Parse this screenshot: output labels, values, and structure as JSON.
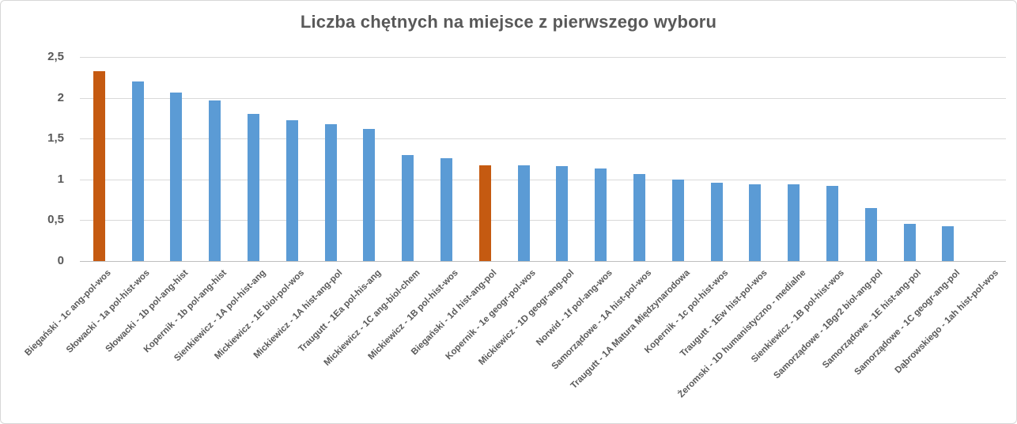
{
  "chart_data": {
    "type": "bar",
    "title": "Liczba chętnych na miejsce z pierwszego wyboru",
    "xlabel": "",
    "ylabel": "",
    "ylim": [
      0,
      2.5
    ],
    "grid": true,
    "legend": "none",
    "y_ticks": {
      "values": [
        2.5,
        2,
        1.5,
        1,
        0.5,
        0
      ],
      "labels": [
        "2,5",
        "2",
        "1,5",
        "1",
        "0,5",
        "0"
      ]
    },
    "categories": [
      "Biegański - 1c ang-pol-wos",
      "Słowacki - 1a pol-hist-wos",
      "Słowacki - 1b pol-ang-hist",
      "Kopernik - 1b pol-ang-hist",
      "Sienkiewicz - 1A pol-hist-ang",
      "Mickiewicz - 1E biol-pol-wos",
      "Mickiewicz - 1A hist-ang-pol",
      "Traugutt - 1Ea pol-his-ang",
      "Mickiewicz - 1C ang-biol-chem",
      "Mickiewicz - 1B pol-hist-wos",
      "Biegański - 1d hist-ang-pol",
      "Kopernik - 1e geogr-pol-wos",
      "Mickiewicz - 1D geogr-ang-pol",
      "Norwid - 1f pol-ang-wos",
      "Samorządowe - 1A hist-pol-wos",
      "Traugutt - 1A Matura Międzynarodowa",
      "Kopernik - 1c pol-hist-wos",
      "Traugutt - 1Ew hist-pol-wos",
      "Żeromski - 1D humanistyczno - medialne",
      "Sienkiewicz - 1B pol-hist-wos",
      "Samorządowe - 1Bgr2 biol-ang-pol",
      "Samorządowe - 1E hist-ang-pol",
      "Samorządowe - 1C geogr-ang-pol",
      "Dąbrowskiego - 1ah hist-pol-wos"
    ],
    "values": [
      2.33,
      2.2,
      2.06,
      1.97,
      1.8,
      1.72,
      1.68,
      1.62,
      1.3,
      1.26,
      1.17,
      1.17,
      1.16,
      1.13,
      1.07,
      1.0,
      0.96,
      0.94,
      0.94,
      0.92,
      0.65,
      0.46,
      0.43,
      0
    ],
    "bar_color": "#5B9BD5",
    "highlight_color": "#C55A11",
    "highlight_indices": [
      0,
      10
    ],
    "text_color": "#595959",
    "gridline_color": "#D9D9D9",
    "axis_line_color": "#BFBFBF"
  }
}
